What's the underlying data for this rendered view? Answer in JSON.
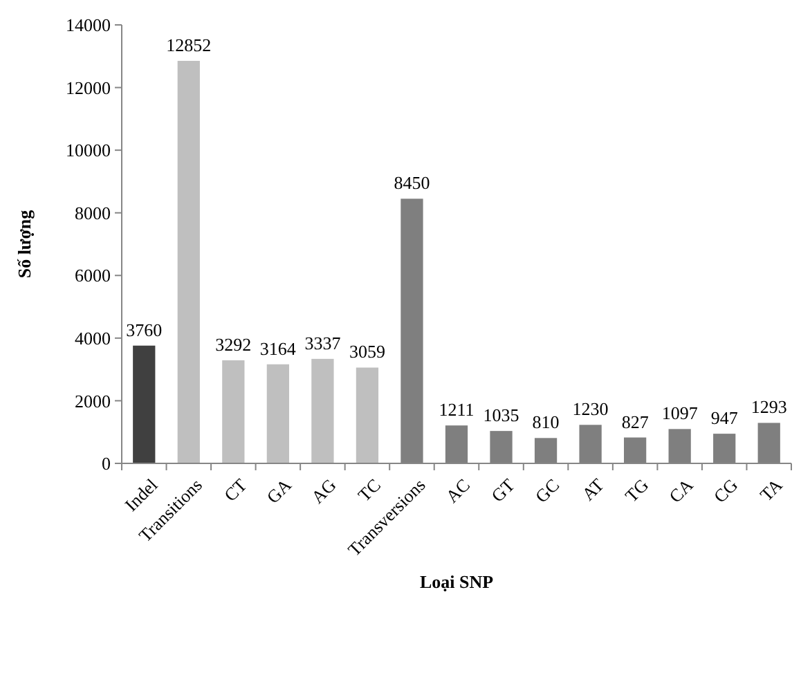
{
  "chart_data": {
    "type": "bar",
    "xlabel": "Loại SNP",
    "ylabel": "Số lượng",
    "categories": [
      "Indel",
      "Transitions",
      "CT",
      "GA",
      "AG",
      "TC",
      "Transversions",
      "AC",
      "GT",
      "GC",
      "AT",
      "TG",
      "CA",
      "CG",
      "TA"
    ],
    "values": [
      3760,
      12852,
      3292,
      3164,
      3337,
      3059,
      8450,
      1211,
      1035,
      810,
      1230,
      827,
      1097,
      947,
      1293
    ],
    "colors": [
      "#404040",
      "#bfbfbf",
      "#bfbfbf",
      "#bfbfbf",
      "#bfbfbf",
      "#bfbfbf",
      "#7f7f7f",
      "#7f7f7f",
      "#7f7f7f",
      "#7f7f7f",
      "#7f7f7f",
      "#7f7f7f",
      "#7f7f7f",
      "#7f7f7f",
      "#7f7f7f"
    ],
    "ylim": [
      0,
      14000
    ],
    "yticks": [
      0,
      2000,
      4000,
      6000,
      8000,
      10000,
      12000,
      14000
    ],
    "data_labels": true,
    "grid": false
  }
}
